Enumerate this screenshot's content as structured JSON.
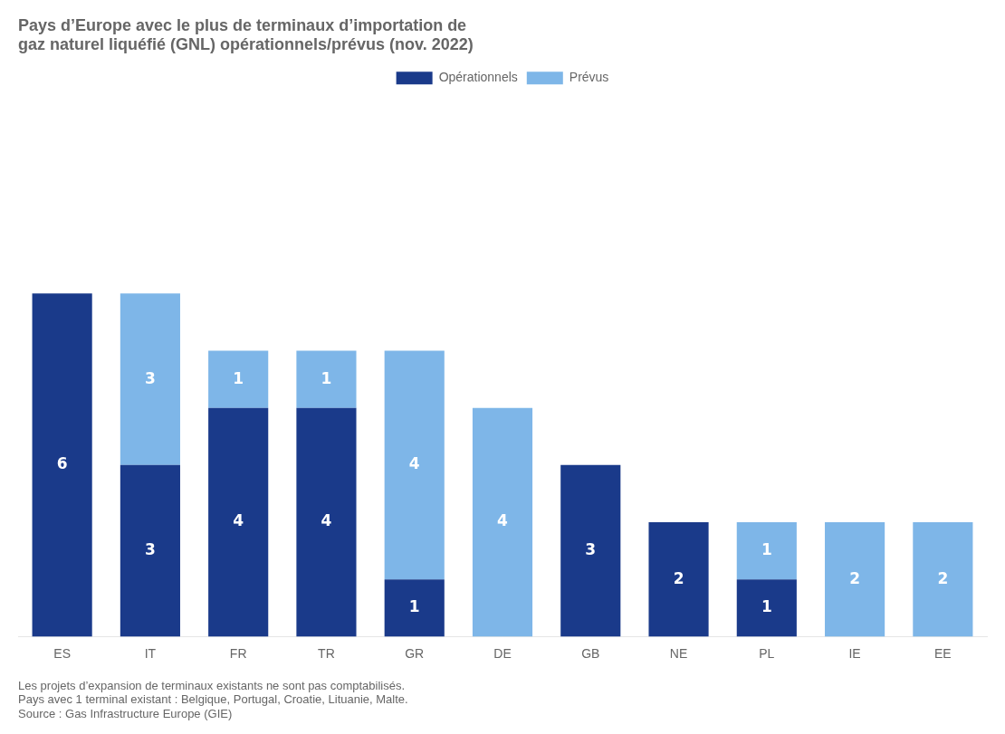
{
  "chart_data": {
    "type": "bar",
    "title": [
      "Pays d’Europe avec le plus de terminaux d’importation de",
      "gaz naturel liquéfié (GNL) opérationnels/prévus (nov. 2022)"
    ],
    "annotations": [
      "Les projets d’expansion de terminaux existants ne sont pas comptabilisés.",
      "Pays avec 1 terminal existant : Belgique, Portugal, Croatie, Lituanie, Malte.",
      "Source : Gas Infrastructure Europe (GIE)"
    ],
    "categories": [
      "ES",
      "IT",
      "FR",
      "TR",
      "GR",
      "DE",
      "GB",
      "NE",
      "PL",
      "IE",
      "EE"
    ],
    "series": [
      {
        "name": "Opérationnels",
        "color": "#1a3a8a",
        "values": [
          6,
          3,
          4,
          4,
          1,
          0,
          3,
          2,
          1,
          0,
          0
        ]
      },
      {
        "name": "Prévus",
        "color": "#7eb6e8",
        "values": [
          0,
          3,
          1,
          1,
          4,
          4,
          0,
          0,
          1,
          2,
          2
        ]
      }
    ],
    "stacked": true,
    "ylim": [
      0,
      9.5
    ],
    "grid": false,
    "legend": "top",
    "data_labels": true,
    "tick_labels": "x"
  }
}
